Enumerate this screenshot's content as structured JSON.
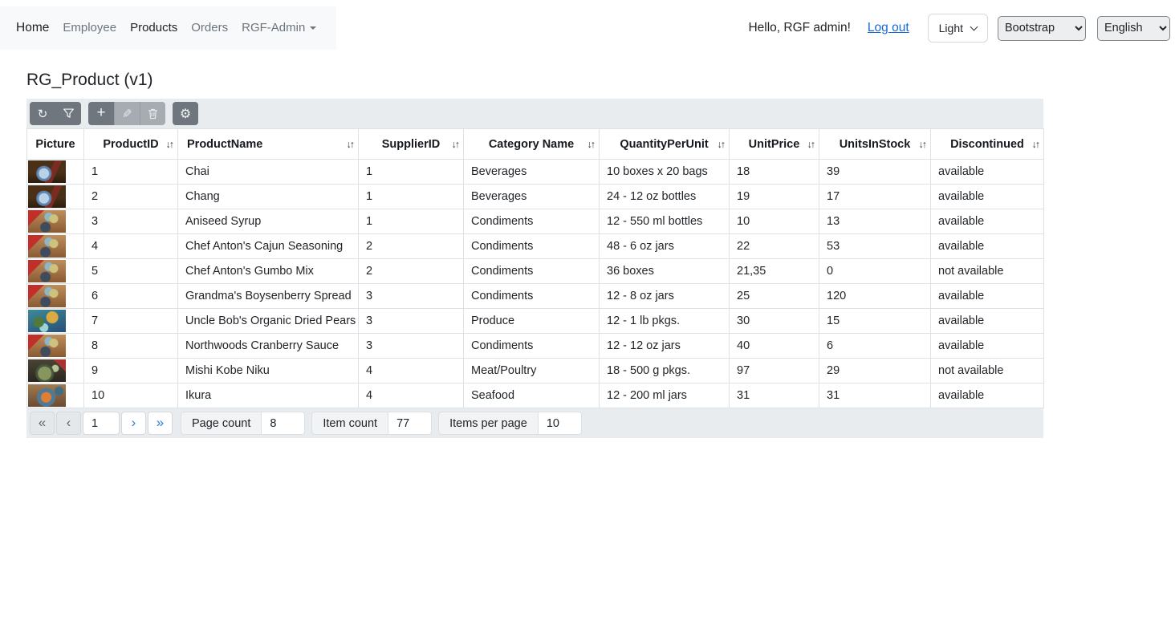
{
  "navbar": {
    "brand": "Home",
    "links": [
      {
        "label": "Employee",
        "active": false,
        "dropdown": false
      },
      {
        "label": "Products",
        "active": true,
        "dropdown": false
      },
      {
        "label": "Orders",
        "active": false,
        "dropdown": false
      },
      {
        "label": "RGF-Admin",
        "active": false,
        "dropdown": true
      }
    ],
    "greeting": "Hello, RGF admin!",
    "logout_label": "Log out",
    "theme_label": "Light",
    "template_select_value": "Bootstrap",
    "language_select_value": "English"
  },
  "page": {
    "title": "RG_Product (v1)"
  },
  "toolbar": {
    "refresh_glyph": "↻",
    "filter_icon": "funnel",
    "add_glyph": "+",
    "edit_glyph": "✎",
    "delete_icon": "trash",
    "settings_glyph": "⚙"
  },
  "grid": {
    "sort_icon": "↓↑",
    "columns": [
      {
        "label": "Picture",
        "sortable": false
      },
      {
        "label": "ProductID",
        "sortable": true
      },
      {
        "label": "ProductName",
        "sortable": true
      },
      {
        "label": "SupplierID",
        "sortable": true
      },
      {
        "label": "Category Name",
        "sortable": true
      },
      {
        "label": "QuantityPerUnit",
        "sortable": true
      },
      {
        "label": "UnitPrice",
        "sortable": true
      },
      {
        "label": "UnitsInStock",
        "sortable": true
      },
      {
        "label": "Discontinued",
        "sortable": true
      }
    ],
    "rows": [
      {
        "picture": "beverages",
        "cells": [
          "1",
          "Chai",
          "1",
          "Beverages",
          "10 boxes x 20 bags",
          "18",
          "39",
          "available"
        ]
      },
      {
        "picture": "beverages",
        "cells": [
          "2",
          "Chang",
          "1",
          "Beverages",
          "24 - 12 oz bottles",
          "19",
          "17",
          "available"
        ]
      },
      {
        "picture": "condiments",
        "cells": [
          "3",
          "Aniseed Syrup",
          "1",
          "Condiments",
          "12 - 550 ml bottles",
          "10",
          "13",
          "available"
        ]
      },
      {
        "picture": "condiments",
        "cells": [
          "4",
          "Chef Anton's Cajun Seasoning",
          "2",
          "Condiments",
          "48 - 6 oz jars",
          "22",
          "53",
          "available"
        ]
      },
      {
        "picture": "condiments",
        "cells": [
          "5",
          "Chef Anton's Gumbo Mix",
          "2",
          "Condiments",
          "36 boxes",
          "21,35",
          "0",
          "not available"
        ]
      },
      {
        "picture": "condiments",
        "cells": [
          "6",
          "Grandma's Boysenberry Spread",
          "3",
          "Condiments",
          "12 - 8 oz jars",
          "25",
          "120",
          "available"
        ]
      },
      {
        "picture": "produce",
        "cells": [
          "7",
          "Uncle Bob's Organic Dried Pears",
          "3",
          "Produce",
          "12 - 1 lb pkgs.",
          "30",
          "15",
          "available"
        ]
      },
      {
        "picture": "condiments",
        "cells": [
          "8",
          "Northwoods Cranberry Sauce",
          "3",
          "Condiments",
          "12 - 12 oz jars",
          "40",
          "6",
          "available"
        ]
      },
      {
        "picture": "meat",
        "cells": [
          "9",
          "Mishi Kobe Niku",
          "4",
          "Meat/Poultry",
          "18 - 500 g pkgs.",
          "97",
          "29",
          "not available"
        ]
      },
      {
        "picture": "seafood",
        "cells": [
          "10",
          "Ikura",
          "4",
          "Seafood",
          "12 - 200 ml jars",
          "31",
          "31",
          "available"
        ]
      }
    ]
  },
  "pager": {
    "first_icon": "«",
    "prev_icon": "‹",
    "next_icon": "›",
    "last_icon": "»",
    "current_page": "1",
    "page_count_label": "Page count",
    "page_count_value": "8",
    "item_count_label": "Item count",
    "item_count_value": "77",
    "items_per_page_label": "Items per page",
    "items_per_page_value": "10"
  }
}
